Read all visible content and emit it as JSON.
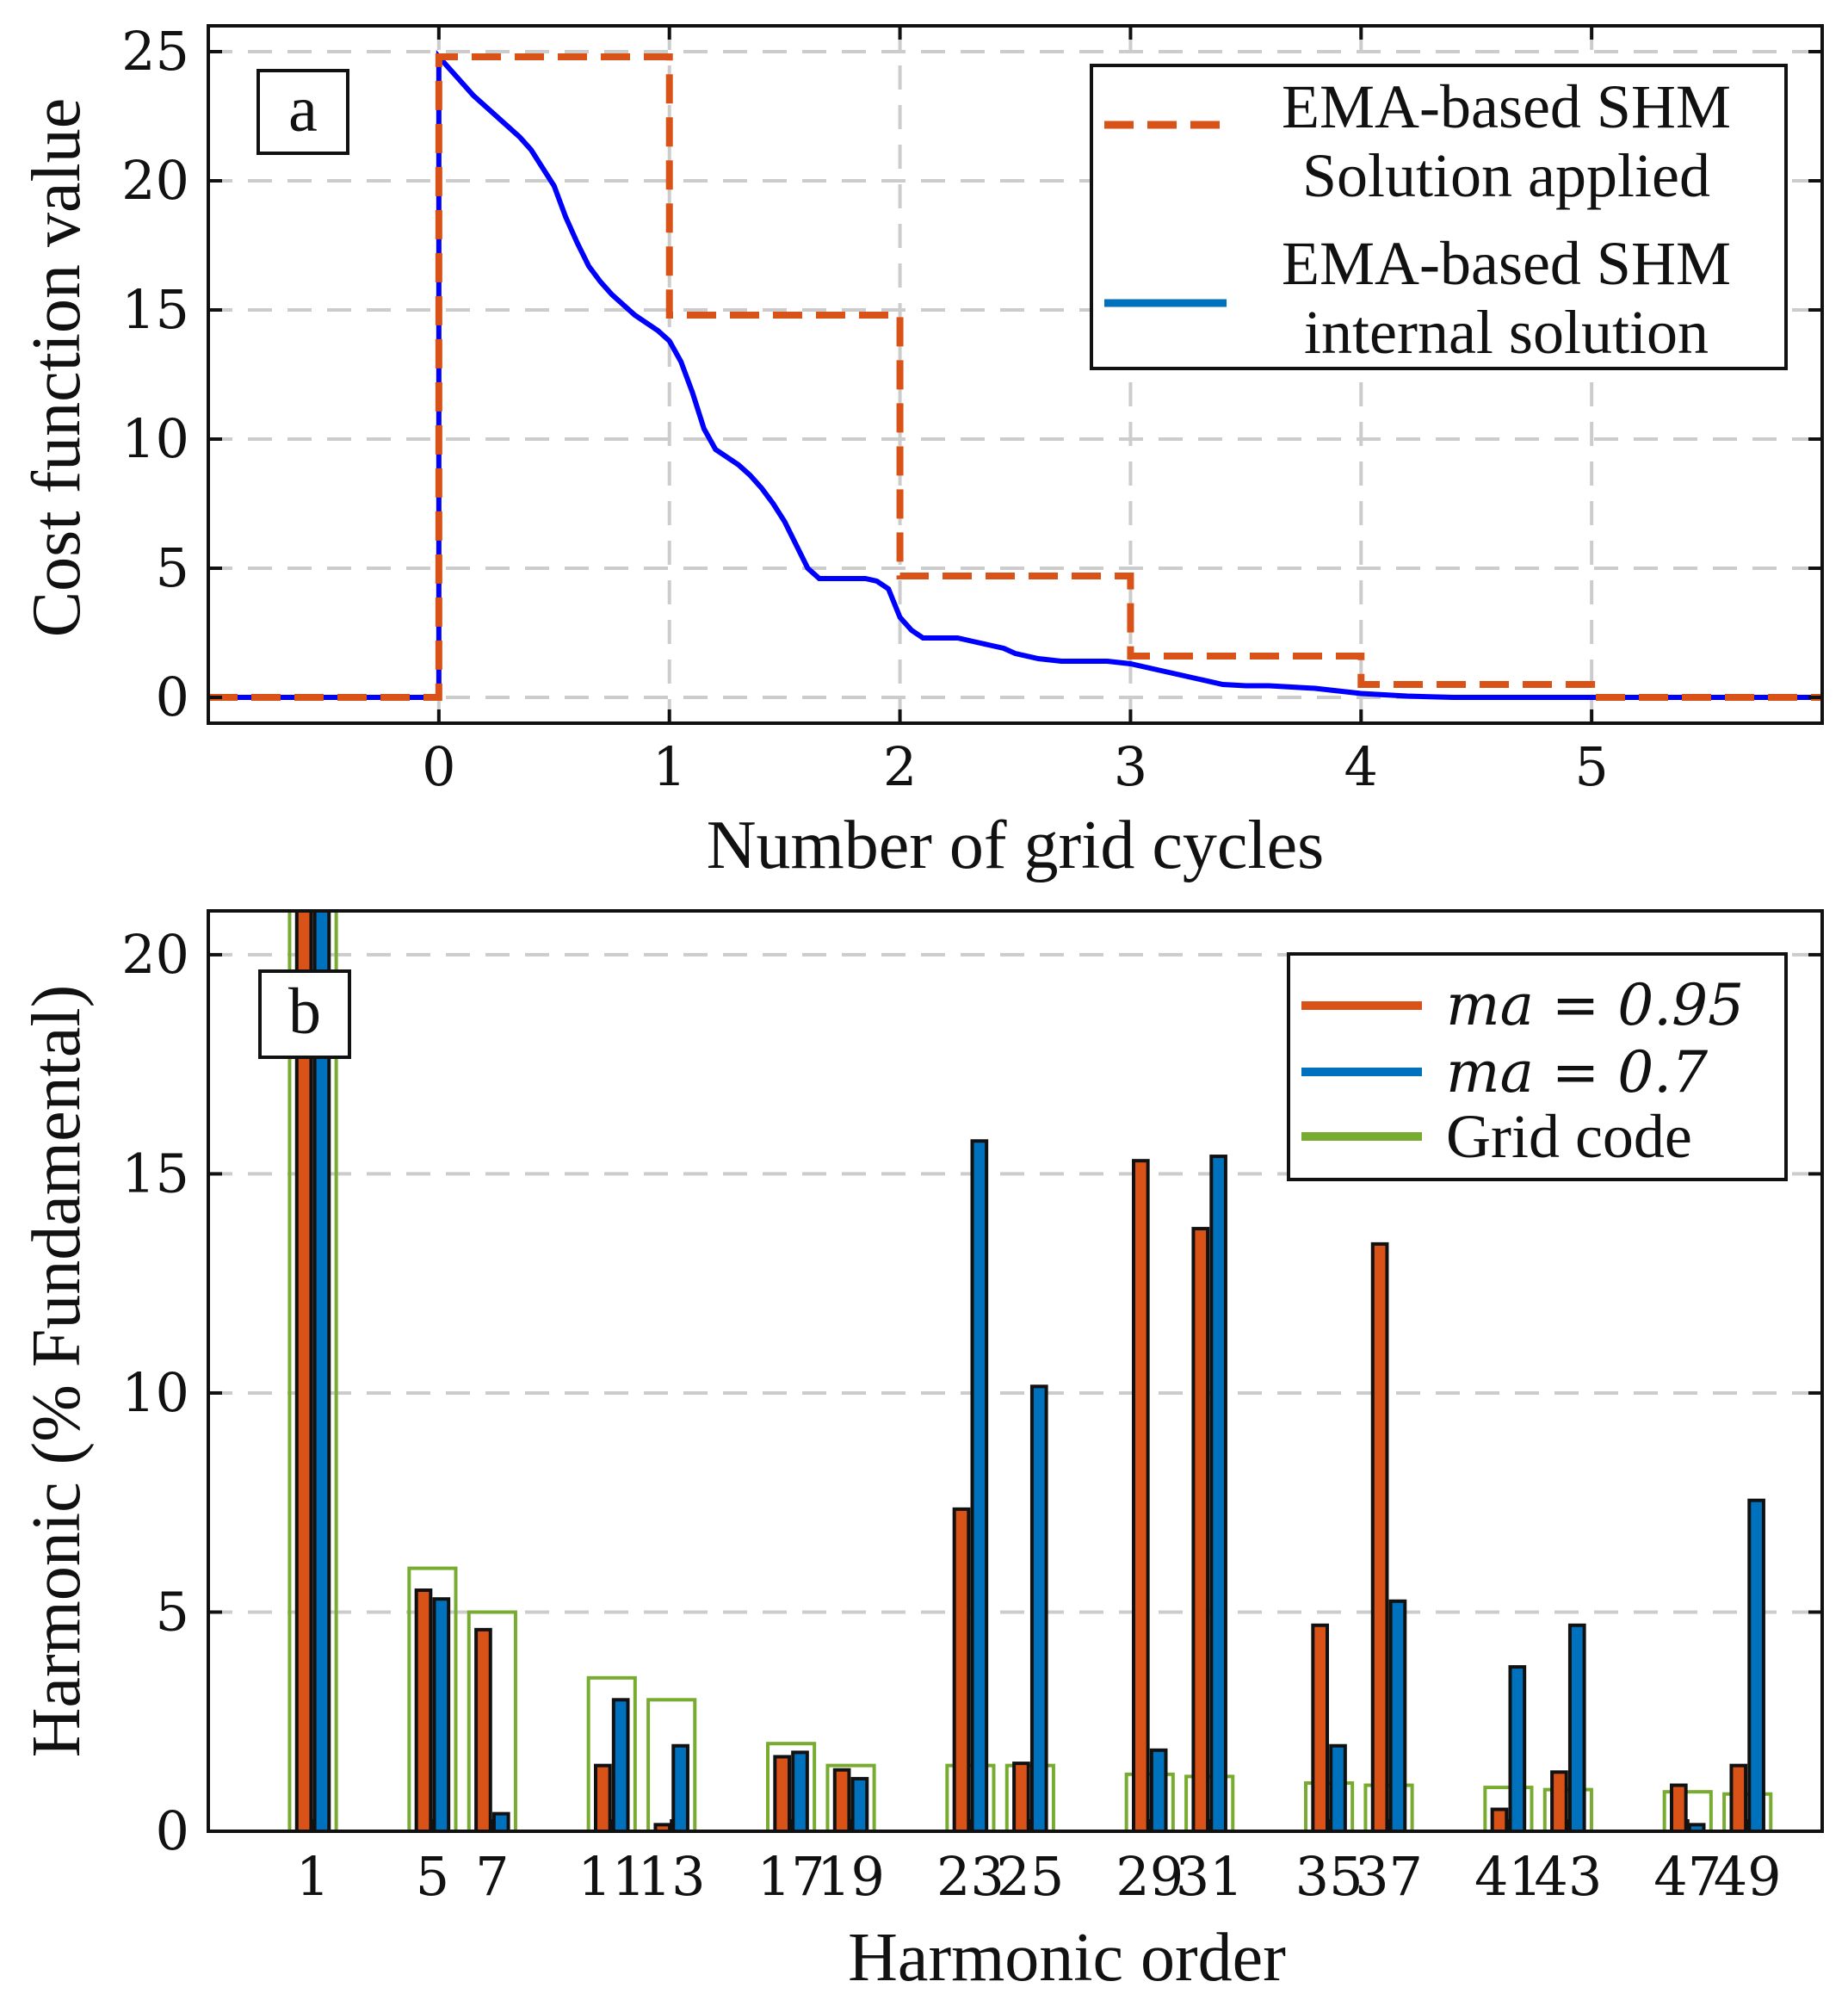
{
  "colors": {
    "orange": "#D95319",
    "blue": "#0000FF",
    "legend_blue": "#0072BD",
    "green": "#77AC30",
    "grid": "#cccccc",
    "axis": "#111111"
  },
  "chart_data": [
    {
      "type": "line",
      "panel_label": "a",
      "title": "",
      "xlabel": "Number of grid cycles",
      "ylabel": "Cost function value",
      "xlim": [
        -1,
        6
      ],
      "ylim": [
        -1,
        26
      ],
      "xticks": [
        0,
        1,
        2,
        3,
        4,
        5
      ],
      "yticks": [
        0,
        5,
        10,
        15,
        20,
        25
      ],
      "grid": true,
      "legend_position": "top-right",
      "legend": [
        {
          "line1": "EMA-based SHM",
          "line2": "Solution applied",
          "style": "dashed",
          "color_key": "orange"
        },
        {
          "line1": "EMA-based SHM",
          "line2": "internal solution",
          "style": "solid",
          "color_key": "legend_blue"
        }
      ],
      "series": [
        {
          "name": "EMA-based SHM Solution applied",
          "style": "dashed-step",
          "x": [
            -1,
            0,
            0,
            1,
            1,
            2,
            2,
            3,
            3,
            4,
            4,
            5,
            5,
            6
          ],
          "y": [
            0,
            0,
            24.8,
            24.8,
            14.8,
            14.8,
            4.7,
            4.7,
            1.6,
            1.6,
            0.5,
            0.5,
            0,
            0
          ]
        },
        {
          "name": "EMA-based SHM internal solution",
          "style": "solid-step",
          "x": [
            -1,
            0,
            0,
            0.05,
            0.1,
            0.15,
            0.2,
            0.25,
            0.3,
            0.35,
            0.4,
            0.45,
            0.5,
            0.55,
            0.6,
            0.65,
            0.7,
            0.75,
            0.8,
            0.85,
            0.9,
            0.95,
            1.0,
            1.05,
            1.1,
            1.15,
            1.2,
            1.25,
            1.3,
            1.35,
            1.4,
            1.45,
            1.5,
            1.55,
            1.6,
            1.65,
            1.7,
            1.75,
            1.8,
            1.85,
            1.9,
            1.95,
            2.0,
            2.05,
            2.1,
            2.15,
            2.2,
            2.25,
            2.3,
            2.35,
            2.4,
            2.45,
            2.5,
            2.6,
            2.7,
            2.8,
            2.9,
            3.0,
            3.1,
            3.2,
            3.3,
            3.4,
            3.5,
            3.6,
            3.7,
            3.8,
            3.9,
            4.0,
            4.2,
            4.4,
            4.6,
            4.8,
            5.0,
            5.2,
            6
          ],
          "y": [
            0,
            0,
            24.8,
            24.3,
            23.8,
            23.3,
            22.9,
            22.5,
            22.1,
            21.7,
            21.2,
            20.5,
            19.8,
            18.6,
            17.6,
            16.7,
            16.1,
            15.6,
            15.2,
            14.8,
            14.5,
            14.2,
            13.8,
            13.0,
            11.8,
            10.4,
            9.6,
            9.3,
            9.0,
            8.6,
            8.1,
            7.5,
            6.8,
            5.9,
            5.0,
            4.6,
            4.6,
            4.6,
            4.6,
            4.6,
            4.5,
            4.2,
            3.1,
            2.6,
            2.3,
            2.3,
            2.3,
            2.3,
            2.2,
            2.1,
            2.0,
            1.9,
            1.7,
            1.5,
            1.4,
            1.4,
            1.4,
            1.3,
            1.1,
            0.9,
            0.7,
            0.5,
            0.45,
            0.45,
            0.4,
            0.35,
            0.25,
            0.15,
            0.05,
            0,
            0,
            0,
            0,
            0,
            0
          ]
        }
      ]
    },
    {
      "type": "bar",
      "panel_label": "b",
      "title": "",
      "xlabel": "Harmonic order",
      "ylabel": "Harmonic (% Fundamental)",
      "ylim": [
        0,
        21
      ],
      "yticks": [
        0,
        5,
        10,
        15,
        20
      ],
      "grid": true,
      "legend_position": "top-right",
      "categories": [
        "1",
        "5",
        "7",
        "11",
        "13",
        "17",
        "19",
        "23",
        "25",
        "29",
        "31",
        "35",
        "37",
        "41",
        "43",
        "47",
        "49"
      ],
      "category_index": [
        1,
        5,
        7,
        11,
        13,
        17,
        19,
        23,
        25,
        29,
        31,
        35,
        37,
        41,
        43,
        47,
        49
      ],
      "series": [
        {
          "name": "ma = 0.95",
          "legend_math": "ma = 0.95",
          "color_key": "orange",
          "values": [
            21,
            5.5,
            4.6,
            1.5,
            0.15,
            1.7,
            1.4,
            7.35,
            1.55,
            15.3,
            13.75,
            4.7,
            13.4,
            0.5,
            1.35,
            1.05,
            1.5
          ]
        },
        {
          "name": "ma = 0.7",
          "legend_math": "ma = 0.7",
          "color_key": "legend_blue",
          "values": [
            21,
            5.3,
            0.4,
            3.0,
            1.95,
            1.8,
            1.2,
            15.75,
            10.15,
            1.85,
            15.4,
            1.95,
            5.25,
            3.75,
            4.7,
            0.15,
            7.55
          ]
        },
        {
          "name": "Grid code",
          "legend_math": "Grid code",
          "color_key": "green",
          "values": [
            21,
            6.0,
            5.0,
            3.5,
            3.0,
            2.0,
            1.5,
            1.5,
            1.5,
            1.3,
            1.25,
            1.1,
            1.05,
            1.0,
            0.95,
            0.9,
            0.85
          ]
        }
      ]
    }
  ]
}
